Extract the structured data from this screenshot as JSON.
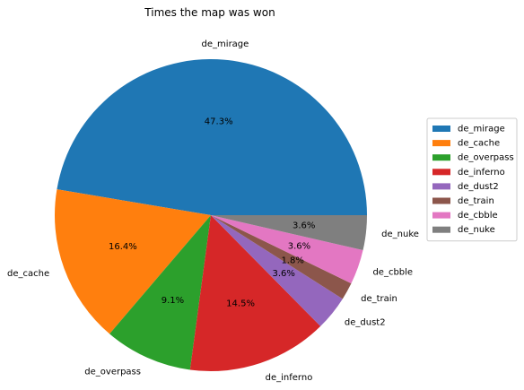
{
  "chart_data": {
    "type": "pie",
    "title": "Times the map was won",
    "slices": [
      {
        "label": "de_mirage",
        "value": 47.3,
        "pct_label": "47.3%",
        "color": "#1f77b4"
      },
      {
        "label": "de_cache",
        "value": 16.4,
        "pct_label": "16.4%",
        "color": "#ff7f0e"
      },
      {
        "label": "de_overpass",
        "value": 9.1,
        "pct_label": "9.1%",
        "color": "#2ca02c"
      },
      {
        "label": "de_inferno",
        "value": 14.5,
        "pct_label": "14.5%",
        "color": "#d62728"
      },
      {
        "label": "de_dust2",
        "value": 3.6,
        "pct_label": "3.6%",
        "color": "#9467bd"
      },
      {
        "label": "de_train",
        "value": 1.8,
        "pct_label": "1.8%",
        "color": "#8c564b"
      },
      {
        "label": "de_cbble",
        "value": 3.6,
        "pct_label": "3.6%",
        "color": "#e377c2"
      },
      {
        "label": "de_nuke",
        "value": 3.6,
        "pct_label": "3.6%",
        "color": "#7f7f7f"
      }
    ],
    "start_angle_deg": 0,
    "direction": "counterclockwise",
    "legend_position": "right"
  }
}
